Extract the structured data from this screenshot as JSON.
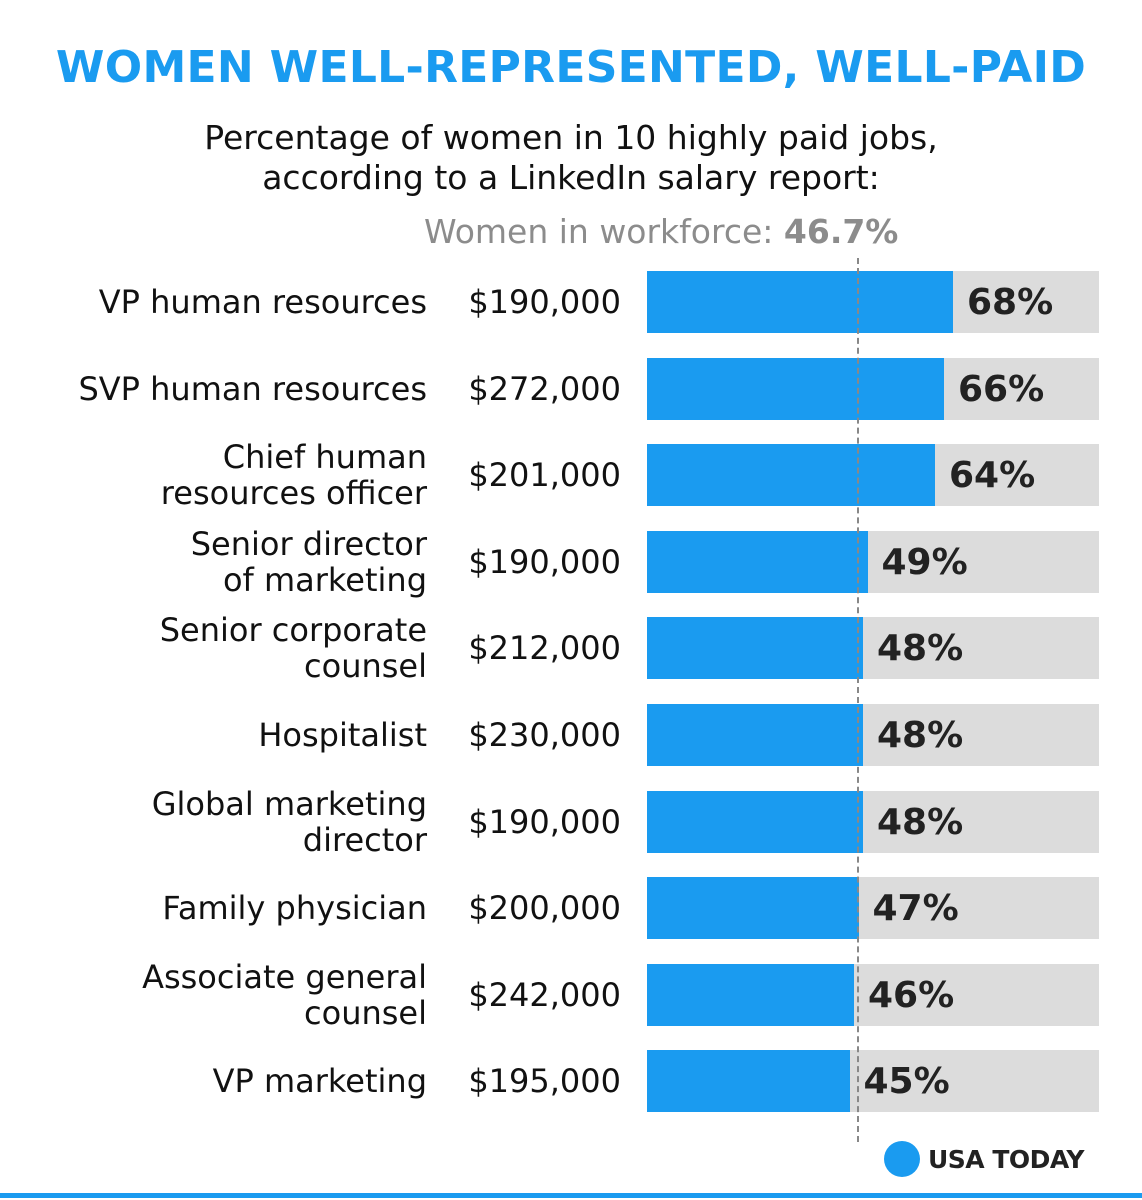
{
  "title": "WOMEN WELL-REPRESENTED, WELL-PAID",
  "subtitle_line1": "Percentage of women in 10 highly paid jobs,",
  "subtitle_line2": "according to a LinkedIn salary report:",
  "reference": {
    "label": "Women in workforce:",
    "value_text": "46.7%",
    "value": 46.7
  },
  "brand": "USA TODAY",
  "colors": {
    "accent": "#1a9bf0",
    "track": "#dcdcdc",
    "reference_text": "#8c8c8c"
  },
  "chart_data": {
    "type": "bar",
    "orientation": "horizontal",
    "title": "WOMEN WELL-REPRESENTED, WELL-PAID",
    "subtitle": "Percentage of women in 10 highly paid jobs, according to a LinkedIn salary report:",
    "xlim": [
      0,
      100
    ],
    "reference_line": {
      "label": "Women in workforce:",
      "value": 46.7
    },
    "categories": [
      [
        "VP human resources"
      ],
      [
        "SVP human resources"
      ],
      [
        "Chief human",
        "resources officer"
      ],
      [
        "Senior director",
        "of marketing"
      ],
      [
        "Senior corporate",
        "counsel"
      ],
      [
        "Hospitalist"
      ],
      [
        "Global marketing",
        "director"
      ],
      [
        "Family physician"
      ],
      [
        "Associate general",
        "counsel"
      ],
      [
        "VP marketing"
      ]
    ],
    "salaries": [
      "$190,000",
      "$272,000",
      "$201,000",
      "$190,000",
      "$212,000",
      "$230,000",
      "$190,000",
      "$200,000",
      "$242,000",
      "$195,000"
    ],
    "values": [
      68,
      66,
      64,
      49,
      48,
      48,
      48,
      47,
      46,
      45
    ],
    "value_labels": [
      "68%",
      "66%",
      "64%",
      "49%",
      "48%",
      "48%",
      "48%",
      "47%",
      "46%",
      "45%"
    ]
  }
}
